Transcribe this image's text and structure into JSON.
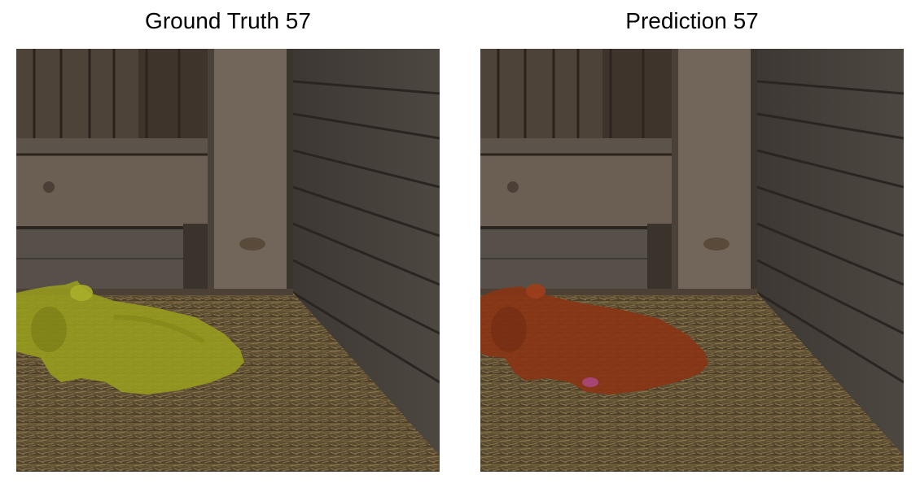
{
  "panels": [
    {
      "title": "Ground Truth 57",
      "mask_color": "#9aa01c"
    },
    {
      "title": "Prediction 57",
      "mask_color": "#8a3414"
    }
  ]
}
